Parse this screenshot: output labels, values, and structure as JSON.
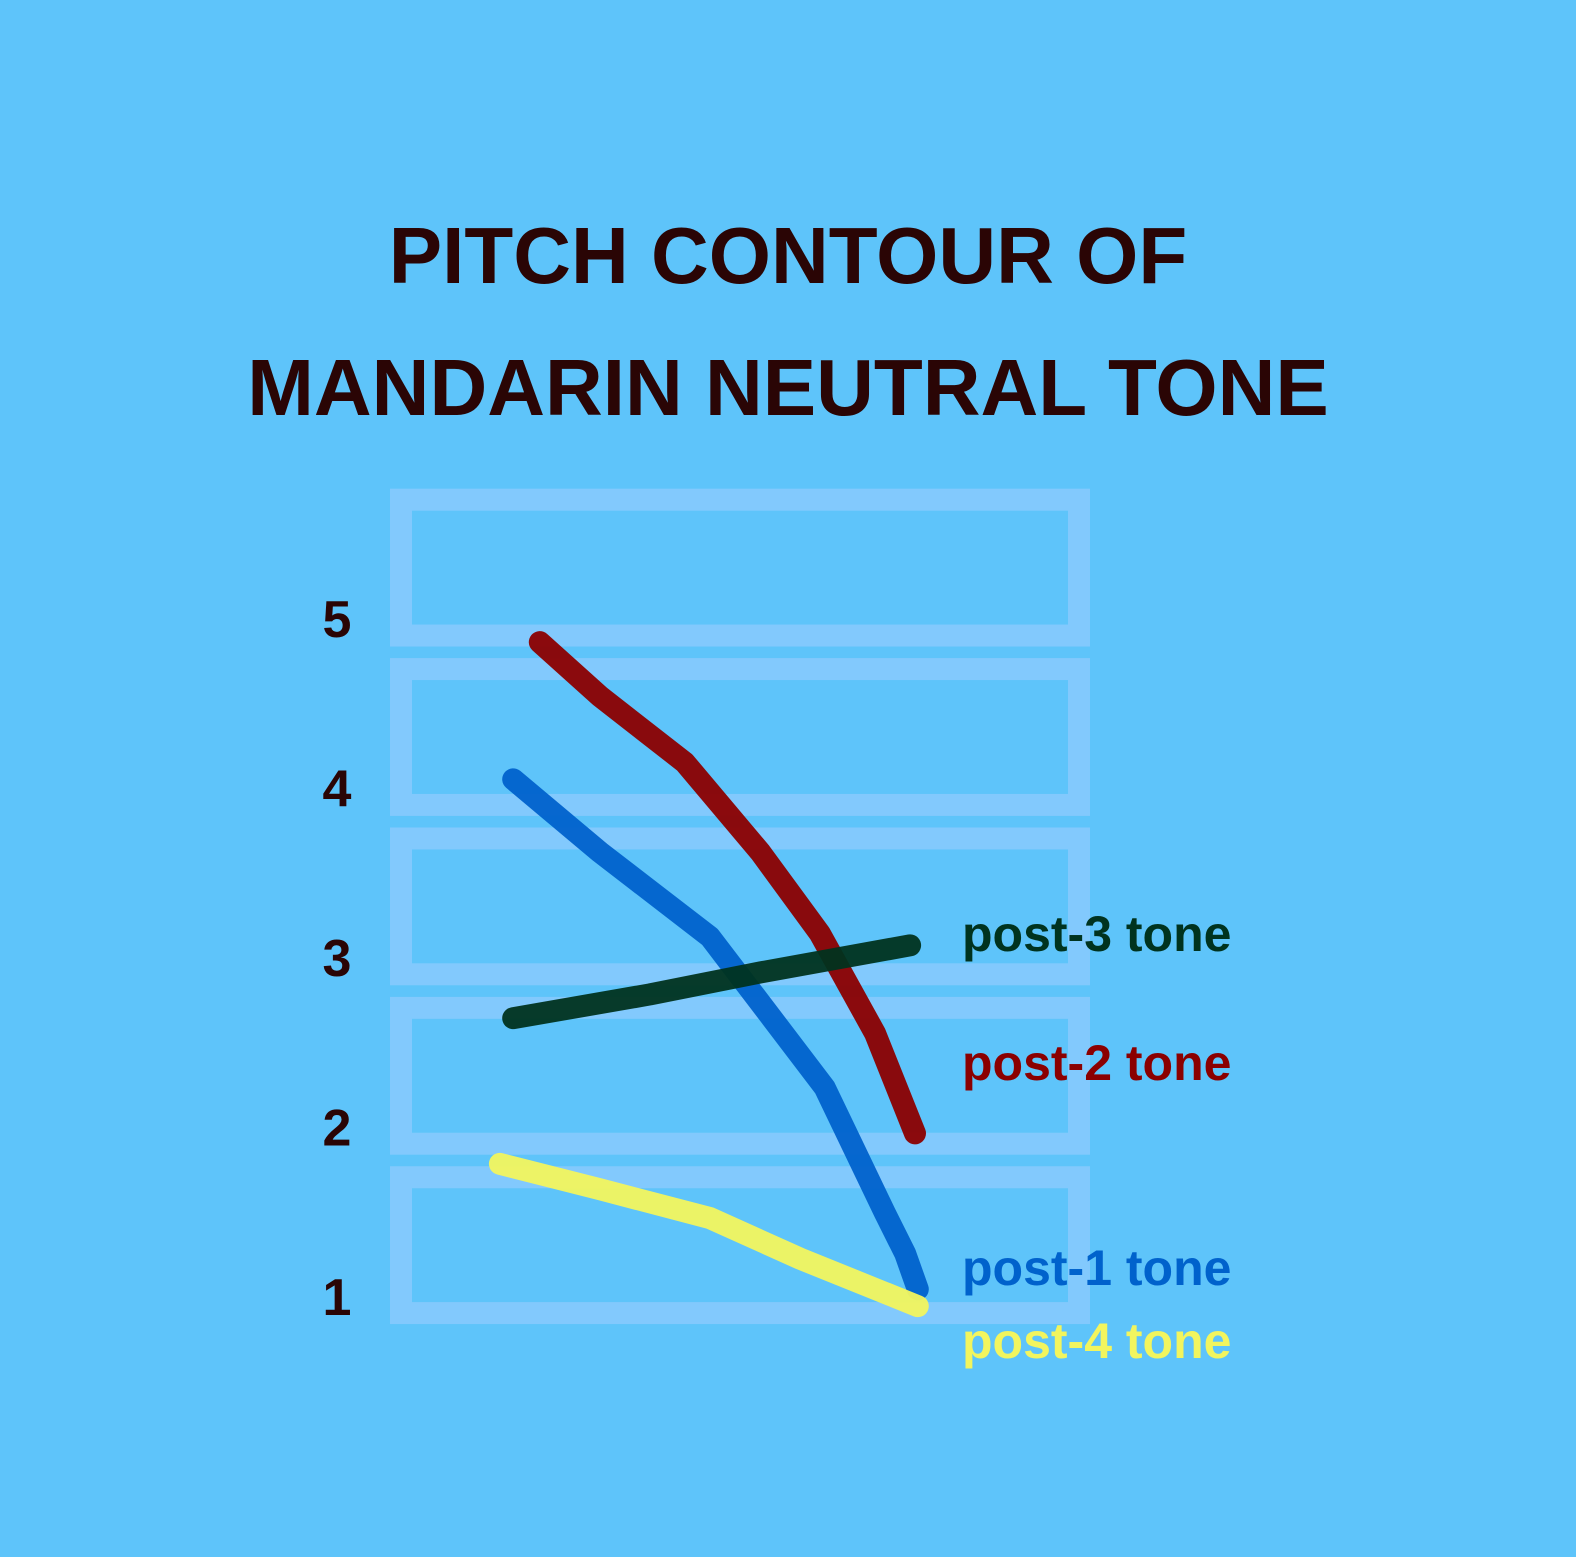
{
  "chart_data": {
    "type": "line",
    "title": "PITCH CONTOUR OF MANDARIN NEUTRAL TONE",
    "xlim": [
      0,
      100
    ],
    "ylim": [
      0.9,
      5.8
    ],
    "yticks": [
      1,
      2,
      3,
      4,
      5
    ],
    "series": [
      {
        "name": "post-1 tone",
        "color": "#0062cc",
        "x": [
          17.6,
          30,
          45.7,
          52.9,
          62.1,
          70.7,
          73.6,
          75.4
        ],
        "values": [
          4.08,
          3.65,
          3.15,
          2.76,
          2.26,
          1.52,
          1.28,
          1.07
        ]
      },
      {
        "name": "post-2 tone",
        "color": "#8b0000",
        "x": [
          21.4,
          30,
          42.1,
          52.9,
          61.4,
          69.3,
          75
        ],
        "values": [
          4.89,
          4.57,
          4.18,
          3.65,
          3.17,
          2.58,
          1.99
        ]
      },
      {
        "name": "post-3 tone",
        "color": "#00331f",
        "x": [
          17.6,
          37.1,
          52.9,
          74.3
        ],
        "values": [
          2.67,
          2.81,
          2.94,
          3.1
        ]
      },
      {
        "name": "post-4 tone",
        "color": "#f2f55e",
        "x": [
          15.7,
          30,
          45.7,
          58.6,
          75.4
        ],
        "values": [
          1.81,
          1.66,
          1.49,
          1.25,
          0.97
        ]
      }
    ]
  }
}
